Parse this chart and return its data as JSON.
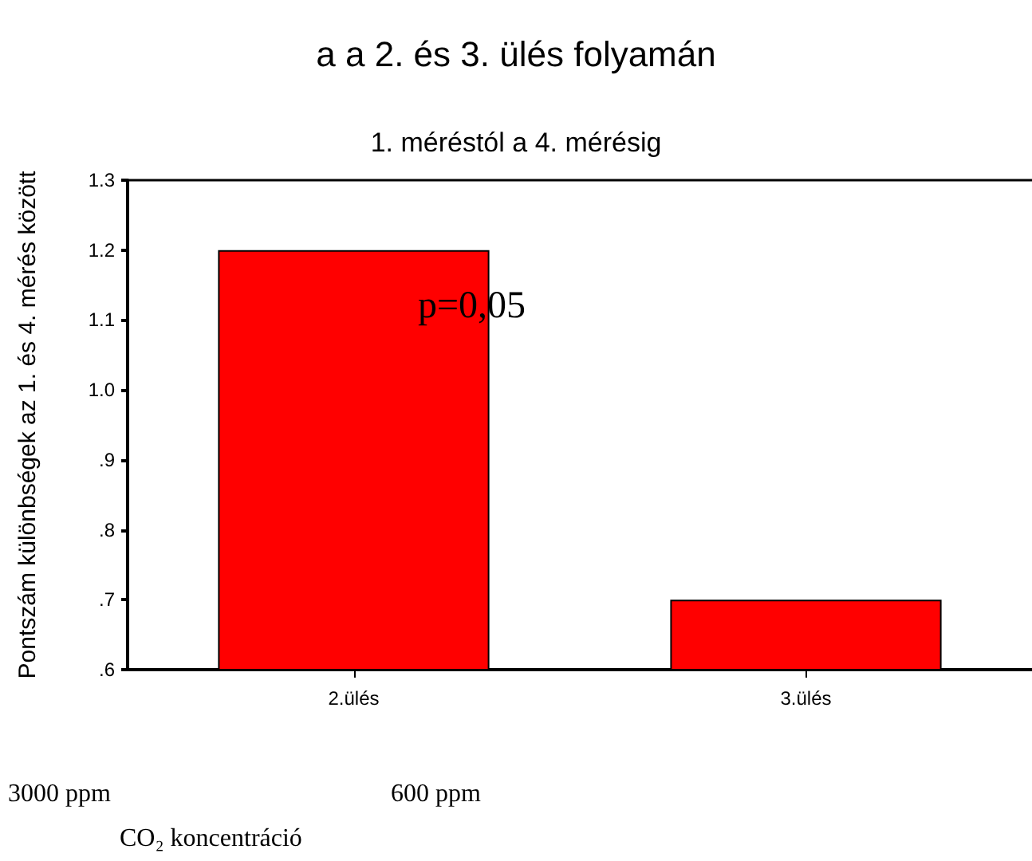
{
  "chart_data": {
    "type": "bar",
    "title": "a a 2. és 3. ülés folyamán",
    "subtitle": "1. méréstól a 4. mérésig",
    "ylabel": "Pontszám különbségek az 1. és 4. mérés között",
    "categories": [
      "2.ülés",
      "3.ülés"
    ],
    "values": [
      1.2,
      0.7
    ],
    "color": "#ff0000",
    "ylim": [
      0.6,
      1.3
    ],
    "yticks": [
      {
        "value": 0.6,
        "label": ".6"
      },
      {
        "value": 0.7,
        "label": ".7"
      },
      {
        "value": 0.8,
        "label": ".8"
      },
      {
        "value": 0.9,
        "label": ".9"
      },
      {
        "value": 1.0,
        "label": "1.0"
      },
      {
        "value": 1.1,
        "label": "1.1"
      },
      {
        "value": 1.2,
        "label": "1.2"
      },
      {
        "value": 1.3,
        "label": "1.3"
      }
    ],
    "annotations": [
      "p=0,05",
      "3000 ppm",
      "600 ppm",
      "CO₂ koncentráció"
    ]
  }
}
